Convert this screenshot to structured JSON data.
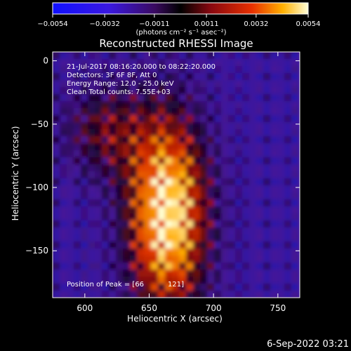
{
  "chart_data": {
    "type": "heatmap",
    "title": "Reconstructed RHESSI Image",
    "xlabel": "Heliocentric X (arcsec)",
    "ylabel": "Heliocentric Y (arcsec)",
    "xlim": [
      575,
      767
    ],
    "ylim": [
      -187,
      7
    ],
    "x_ticks": [
      600,
      650,
      700,
      750
    ],
    "y_ticks": [
      0,
      -50,
      -100,
      -150
    ],
    "x_tick_labels": [
      "600",
      "650",
      "700",
      "750"
    ],
    "y_tick_labels": [
      "0",
      "−50",
      "−100",
      "−150"
    ],
    "colorbar": {
      "vmin": -0.0054,
      "vmax": 0.0054,
      "ticks": [
        -0.0054,
        -0.0032,
        -0.0011,
        0.0011,
        0.0032,
        0.0054
      ],
      "tick_labels": [
        "−0.0054",
        "−0.0032",
        "−0.0011",
        "0.0011",
        "0.0032",
        "0.0054"
      ],
      "unit": "(photons cm⁻² s⁻¹ asec⁻²)"
    },
    "annotations": [
      "21-Jul-2017 08:16:20.000 to 08:22:20.000",
      "Detectors: 3F 6F 8F, Att 0",
      "Energy Range: 12.0 - 25.0 keV",
      "Clean    Total counts: 7.55E+03"
    ],
    "peak_label": "Position of Peak = [66",
    "peak_label_end": "121]",
    "peak_position": [
      664,
      -121
    ],
    "grid": false
  },
  "footer": {
    "timestamp": "6-Sep-2022 03:21"
  }
}
